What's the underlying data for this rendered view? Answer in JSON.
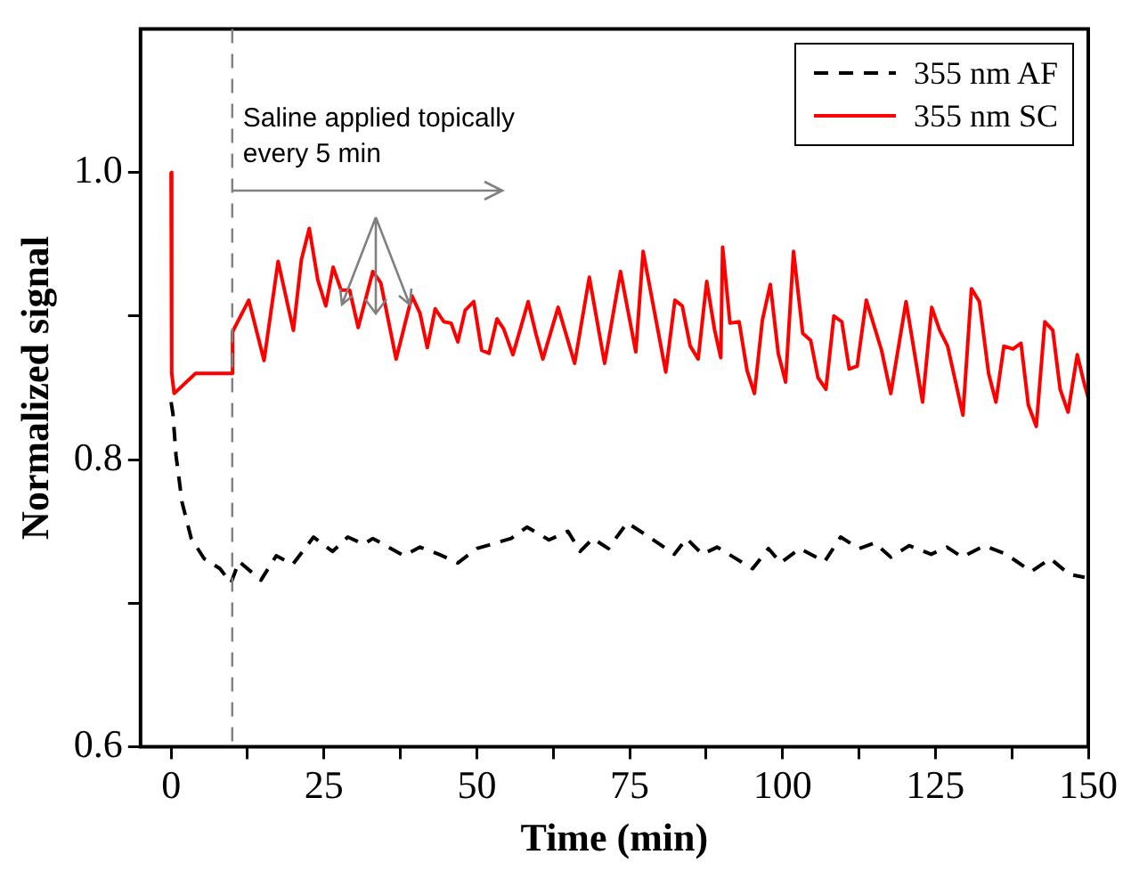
{
  "chart_data": {
    "type": "line",
    "xlabel": "Time (min)",
    "ylabel": "Normalized signal",
    "xlim": [
      -5,
      150
    ],
    "ylim": [
      0.6,
      1.1
    ],
    "xticks": [
      0,
      {
        "value": 12.5,
        "label": null
      },
      25,
      {
        "value": 37.5,
        "label": null
      },
      50,
      {
        "value": 62.5,
        "label": null
      },
      75,
      {
        "value": 87.5,
        "label": null
      },
      100,
      {
        "value": 112.5,
        "label": null
      },
      125,
      {
        "value": 137.5,
        "label": null
      },
      150
    ],
    "yticks": [
      0.6,
      {
        "value": 0.7,
        "label": null
      },
      0.8,
      {
        "value": 0.9,
        "label": null
      },
      {
        "value": 1,
        "label": "1.0"
      }
    ],
    "grid": false,
    "legend": "top right",
    "marker": "none",
    "ref_lines": [
      {
        "axis": "x",
        "value": 10,
        "color": "#808080",
        "line_style": "dashed"
      }
    ],
    "annotations": [
      {
        "text": "Saline applied topically every 5 min",
        "x": 10,
        "y": 1.05
      }
    ],
    "series": [
      {
        "name": "355 nm AF",
        "color": "#000000",
        "line_style": "dashed",
        "x": [
          0,
          0.3,
          0.8,
          1.8,
          3.3,
          5.4,
          8,
          9.8,
          11.1,
          14.7,
          17.2,
          19.9,
          23.3,
          26.4,
          28.9,
          31.5,
          33,
          38.1,
          40.7,
          43.8,
          46.9,
          50,
          55.6,
          58.2,
          61.8,
          64.9,
          66.9,
          69,
          71.5,
          74.6,
          78.2,
          82.3,
          84.3,
          86.9,
          89.3,
          92,
          95.1,
          97.7,
          99.7,
          102.8,
          106.9,
          109.5,
          112.5,
          115.1,
          117.7,
          120.7,
          124.3,
          126.9,
          129.4,
          133,
          136.6,
          140.7,
          143.8,
          146.9,
          149.4
        ],
        "values": [
          0.84,
          0.832,
          0.803,
          0.77,
          0.745,
          0.731,
          0.724,
          0.714,
          0.729,
          0.716,
          0.733,
          0.727,
          0.746,
          0.736,
          0.746,
          0.741,
          0.745,
          0.733,
          0.739,
          0.734,
          0.728,
          0.738,
          0.745,
          0.753,
          0.744,
          0.75,
          0.736,
          0.745,
          0.738,
          0.756,
          0.746,
          0.734,
          0.745,
          0.734,
          0.739,
          0.732,
          0.724,
          0.738,
          0.728,
          0.738,
          0.729,
          0.746,
          0.738,
          0.742,
          0.732,
          0.74,
          0.734,
          0.739,
          0.732,
          0.74,
          0.734,
          0.722,
          0.731,
          0.72,
          0.718
        ]
      },
      {
        "name": "355 nm SC",
        "color": "#ff0000",
        "line_style": "solid",
        "x": [
          0,
          0.1,
          0.5,
          4,
          10,
          10.05,
          12.7,
          15.2,
          17.5,
          20,
          21.3,
          22.6,
          24,
          25.3,
          26.5,
          27.8,
          29.2,
          30.6,
          33,
          34.3,
          36.8,
          39.4,
          40.7,
          41.9,
          43.2,
          44.6,
          45.8,
          46.9,
          48.1,
          49.5,
          50.8,
          52,
          53.3,
          54.4,
          55.9,
          58.4,
          59.7,
          60.8,
          63.3,
          66,
          68.4,
          70.9,
          73.5,
          76,
          77.2,
          80.9,
          82.4,
          83.6,
          84.9,
          86.2,
          87.6,
          88.9,
          89.9,
          90.2,
          91.4,
          92.9,
          94.2,
          95.4,
          96.7,
          98,
          99.3,
          100.5,
          101.8,
          103.3,
          104.6,
          105.8,
          107.1,
          108.4,
          109.7,
          110.9,
          112.2,
          113.7,
          116.2,
          117.7,
          120.2,
          122.9,
          124.4,
          125.7,
          127,
          129.5,
          130.9,
          132.2,
          133.7,
          134.9,
          136.2,
          137.7,
          139,
          140.2,
          141.5,
          142.9,
          144.2,
          145.4,
          146.7,
          148.2,
          149.4,
          150
        ],
        "values": [
          1.0,
          0.86,
          0.846,
          0.86,
          0.86,
          0.889,
          0.911,
          0.869,
          0.938,
          0.89,
          0.939,
          0.961,
          0.925,
          0.907,
          0.934,
          0.918,
          0.918,
          0.892,
          0.931,
          0.923,
          0.87,
          0.914,
          0.902,
          0.878,
          0.905,
          0.896,
          0.895,
          0.882,
          0.904,
          0.91,
          0.876,
          0.874,
          0.898,
          0.891,
          0.873,
          0.91,
          0.887,
          0.87,
          0.906,
          0.867,
          0.927,
          0.867,
          0.931,
          0.875,
          0.945,
          0.861,
          0.911,
          0.907,
          0.879,
          0.87,
          0.924,
          0.89,
          0.871,
          0.948,
          0.895,
          0.896,
          0.862,
          0.846,
          0.897,
          0.922,
          0.874,
          0.854,
          0.945,
          0.888,
          0.883,
          0.857,
          0.849,
          0.9,
          0.896,
          0.863,
          0.865,
          0.911,
          0.876,
          0.846,
          0.91,
          0.84,
          0.906,
          0.89,
          0.879,
          0.831,
          0.919,
          0.91,
          0.86,
          0.84,
          0.879,
          0.877,
          0.881,
          0.838,
          0.823,
          0.896,
          0.89,
          0.849,
          0.833,
          0.873,
          0.852,
          0.843
        ]
      }
    ]
  }
}
